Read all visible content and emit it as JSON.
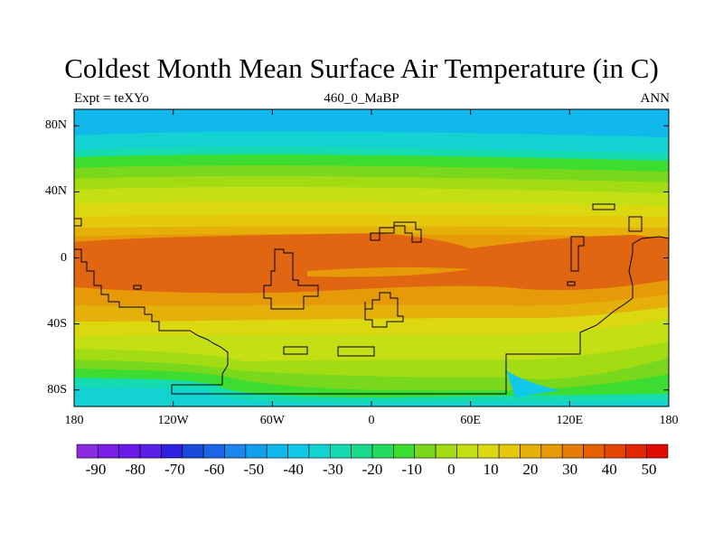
{
  "figure": {
    "title": "Coldest Month Mean Surface Air Temperature (in C)",
    "left_label": "Expt = teXYo",
    "center_label": "460_0_MaBP",
    "right_label": "ANN"
  },
  "map": {
    "projection": "cylindrical equidistant",
    "lon_range": [
      -180,
      180
    ],
    "lat_range": [
      -90,
      90
    ],
    "y_ticks": [
      {
        "lat": 80,
        "label": "80N"
      },
      {
        "lat": 40,
        "label": "40N"
      },
      {
        "lat": 0,
        "label": "0"
      },
      {
        "lat": -40,
        "label": "40S"
      },
      {
        "lat": -80,
        "label": "80S"
      }
    ],
    "x_ticks": [
      {
        "lon": -180,
        "label": "180"
      },
      {
        "lon": -120,
        "label": "120W"
      },
      {
        "lon": -60,
        "label": "60W"
      },
      {
        "lon": 0,
        "label": "0"
      },
      {
        "lon": 60,
        "label": "60E"
      },
      {
        "lon": 120,
        "label": "120E"
      },
      {
        "lon": 180,
        "label": "180"
      }
    ]
  },
  "colorbar": {
    "levels": [
      -90,
      -80,
      -70,
      -60,
      -50,
      -40,
      -30,
      -20,
      -10,
      0,
      10,
      20,
      30,
      40,
      50
    ],
    "labels": [
      "-90",
      "-80",
      "-70",
      "-60",
      "-50",
      "-40",
      "-30",
      "-20",
      "-10",
      "0",
      "10",
      "20",
      "30",
      "40",
      "50"
    ],
    "colors": [
      "#8a2be2",
      "#7a1ee6",
      "#6a1ae8",
      "#5a20ea",
      "#3020e0",
      "#1a4ad8",
      "#1a66e6",
      "#1a86ee",
      "#12a0ee",
      "#10b8ec",
      "#10c8e8",
      "#12d2d2",
      "#14dcb0",
      "#18dc8c",
      "#22dc60",
      "#3cdc30",
      "#7ad81c",
      "#a4dc14",
      "#c4e014",
      "#dcd810",
      "#e6c80c",
      "#e6b00a",
      "#e69a08",
      "#e67e06",
      "#e66004",
      "#e44404",
      "#e42604",
      "#e20a04"
    ]
  },
  "colors": {
    "band_80N": "#10b8ec",
    "band_60N": "#14dcb0",
    "band_50N": "#3cdc30",
    "band_40N": "#a4dc14",
    "band_30N": "#dcd810",
    "band_20N": "#e6c80c",
    "band_10N": "#e6b00a",
    "equator": "#e06612",
    "south_sub": "#e69a08",
    "south_mid": "#c4e014",
    "south_green": "#7ad81c",
    "south_cyan": "#12d2d2",
    "south_pole": "#10b8ec",
    "coast": "#000000"
  }
}
